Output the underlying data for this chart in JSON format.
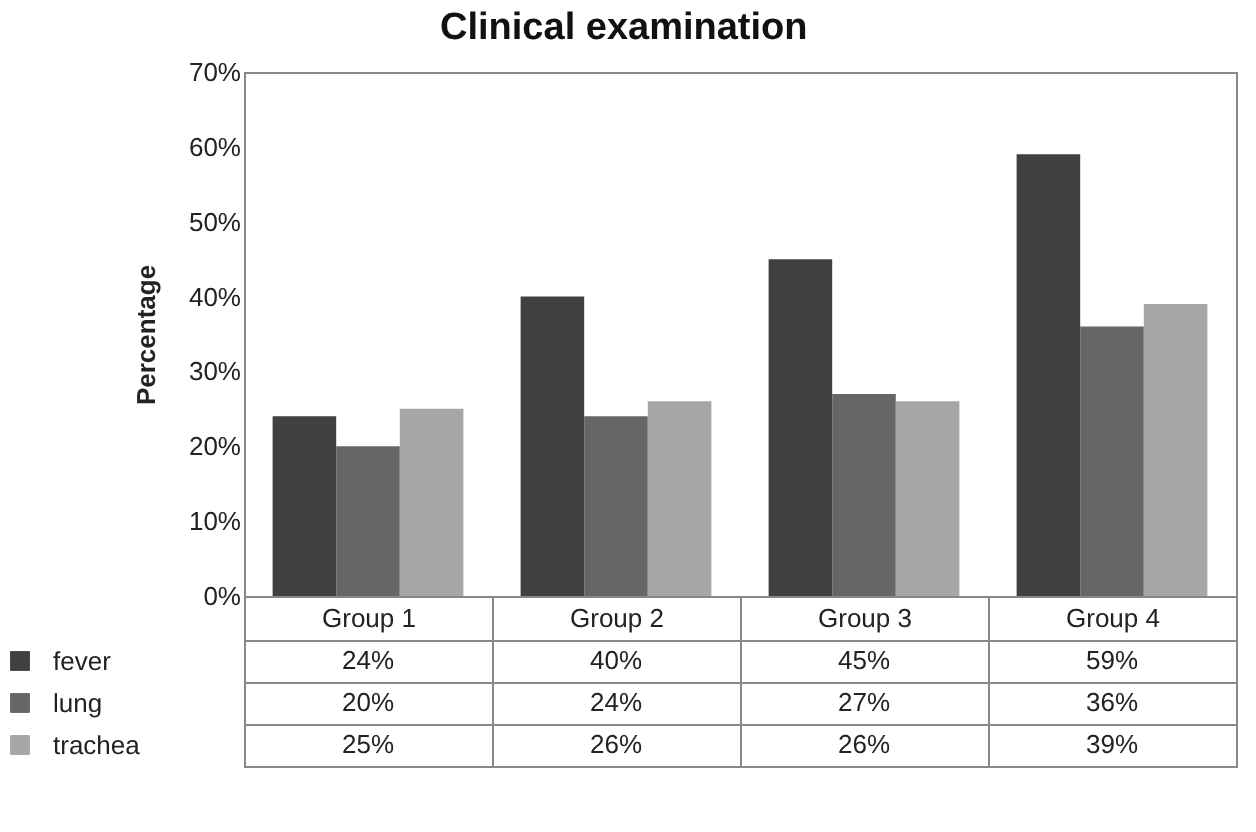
{
  "chart_data": {
    "type": "bar",
    "title": "Clinical examination",
    "ylabel": "Percentage",
    "categories": [
      "Group 1",
      "Group 2",
      "Group 3",
      "Group 4"
    ],
    "series": [
      {
        "name": "fever",
        "color": "#404040",
        "values": [
          24,
          40,
          45,
          59
        ],
        "value_labels": [
          "24%",
          "40%",
          "45%",
          "59%"
        ]
      },
      {
        "name": "lung",
        "color": "#666666",
        "values": [
          20,
          24,
          27,
          36
        ],
        "value_labels": [
          "20%",
          "24%",
          "27%",
          "36%"
        ]
      },
      {
        "name": "trachea",
        "color": "#a6a6a6",
        "values": [
          25,
          26,
          26,
          39
        ],
        "value_labels": [
          "25%",
          "26%",
          "26%",
          "39%"
        ]
      }
    ],
    "ylim": [
      0,
      70
    ],
    "yticks": [
      {
        "value": 0,
        "label": "0%"
      },
      {
        "value": 10,
        "label": "10%"
      },
      {
        "value": 20,
        "label": "20%"
      },
      {
        "value": 30,
        "label": "30%"
      },
      {
        "value": 40,
        "label": "40%"
      },
      {
        "value": 50,
        "label": "50%"
      },
      {
        "value": 60,
        "label": "60%"
      },
      {
        "value": 70,
        "label": "70%"
      }
    ],
    "grid": false,
    "legend": "bottom"
  }
}
